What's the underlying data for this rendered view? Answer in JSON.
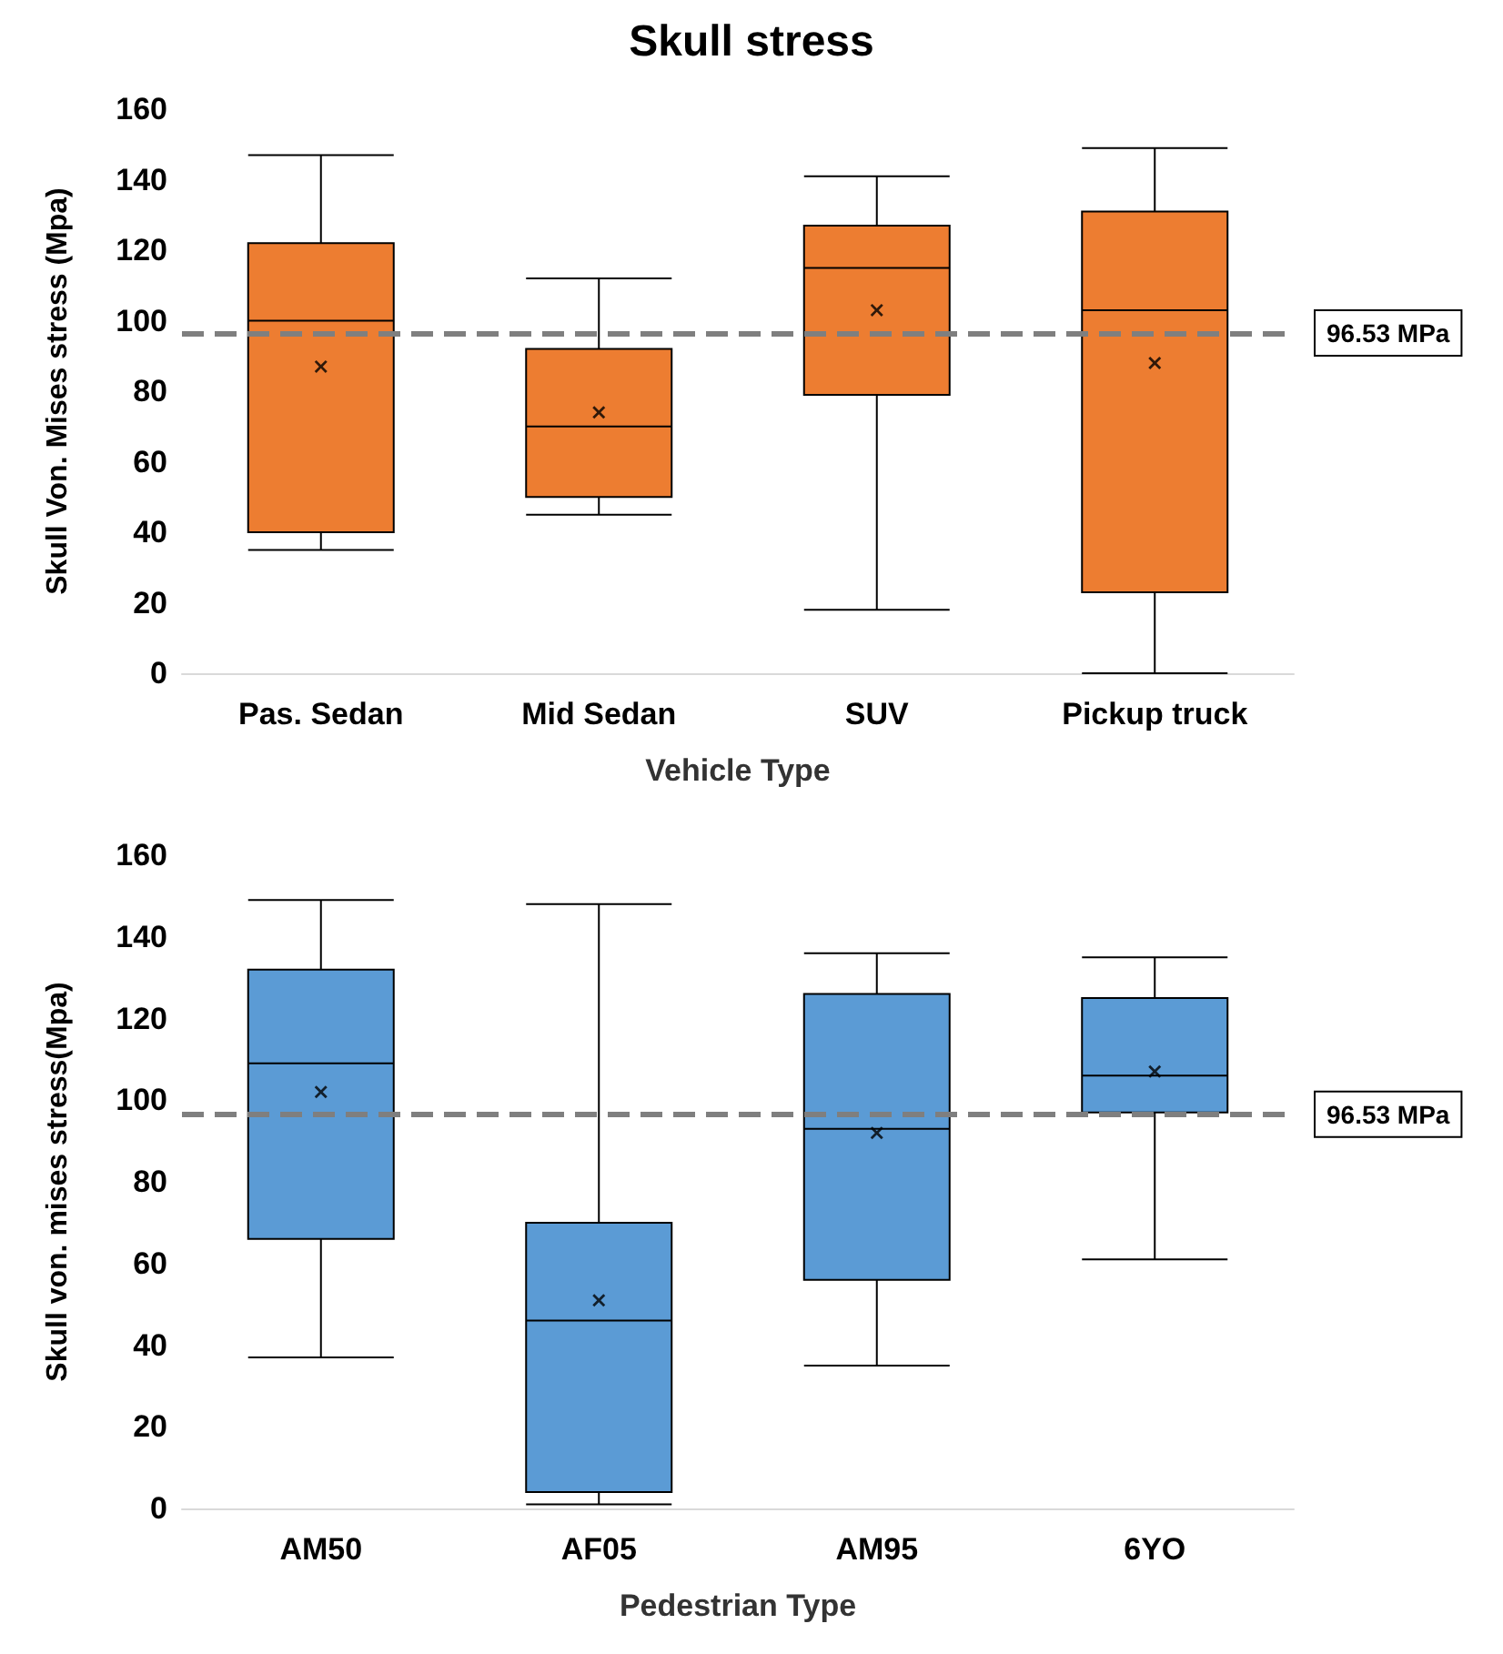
{
  "chart_data": [
    {
      "type": "box",
      "title": "Skull stress",
      "xlabel": "Vehicle Type",
      "ylabel": "Skull Von. Mises stress (Mpa)",
      "categories": [
        "Pas. Sedan",
        "Mid Sedan",
        "SUV",
        "Pickup truck"
      ],
      "color": "#ed7d31",
      "marker": "cross",
      "boxes": [
        {
          "low": 35,
          "q1": 40,
          "median": 100,
          "q3": 122,
          "high": 147,
          "mean": 87
        },
        {
          "low": 45,
          "q1": 50,
          "median": 70,
          "q3": 92,
          "high": 112,
          "mean": 74
        },
        {
          "low": 18,
          "q1": 79,
          "median": 115,
          "q3": 127,
          "high": 141,
          "mean": 103
        },
        {
          "low": 0,
          "q1": 23,
          "median": 103,
          "q3": 131,
          "high": 149,
          "mean": 88
        }
      ],
      "ylim": [
        0,
        160
      ],
      "yticks": [
        0,
        20,
        40,
        60,
        80,
        100,
        120,
        140,
        160
      ],
      "ref_lines": [
        {
          "axis": "y",
          "value": 96.53,
          "label": "96.53 MPa",
          "color": "#7f7f7f",
          "line_style": "dashed"
        }
      ]
    },
    {
      "type": "box",
      "xlabel": "Pedestrian Type",
      "ylabel": "Skull von. mises stress(Mpa)",
      "categories": [
        "AM50",
        "AF05",
        "AM95",
        "6YO"
      ],
      "color": "#5b9bd5",
      "marker": "cross",
      "boxes": [
        {
          "low": 37,
          "q1": 66,
          "median": 109,
          "q3": 132,
          "high": 149,
          "mean": 102
        },
        {
          "low": 1,
          "q1": 4,
          "median": 46,
          "q3": 70,
          "high": 148,
          "mean": 51
        },
        {
          "low": 35,
          "q1": 56,
          "median": 93,
          "q3": 126,
          "high": 136,
          "mean": 92
        },
        {
          "low": 61,
          "q1": 97,
          "median": 106,
          "q3": 125,
          "high": 135,
          "mean": 107
        }
      ],
      "ylim": [
        0,
        160
      ],
      "yticks": [
        0,
        20,
        40,
        60,
        80,
        100,
        120,
        140,
        160
      ],
      "ref_lines": [
        {
          "axis": "y",
          "value": 96.53,
          "label": "96.53 MPa",
          "color": "#7f7f7f",
          "line_style": "dashed"
        }
      ]
    }
  ]
}
